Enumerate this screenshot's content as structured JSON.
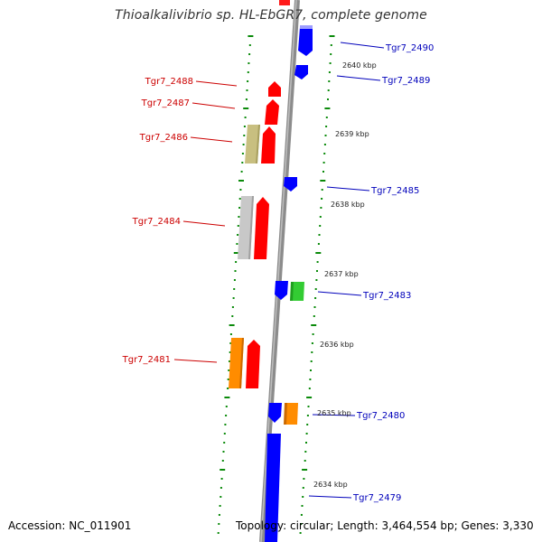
{
  "header": {
    "title": "Thioalkalivibrio sp. HL-EbGR7, complete genome"
  },
  "footer": {
    "accession": "Accession: NC_011901",
    "summary": "Topology: circular; Length: 3,464,554 bp; Genes: 3,330"
  },
  "colors": {
    "backbone": "#8c8c8c",
    "ticks": "#0a8a0a",
    "reverse_strand_label": "#cc0000",
    "forward_strand_label": "#0000bb"
  },
  "scale_labels": [
    "2640 kbp",
    "2639 kbp",
    "2638 kbp",
    "2637 kbp",
    "2636 kbp",
    "2635 kbp",
    "2634 kbp"
  ],
  "genes_left": [
    {
      "label": "Tgr7_2488",
      "color": "#ff0000"
    },
    {
      "label": "Tgr7_2487",
      "color": "#ff0000"
    },
    {
      "label": "Tgr7_2486",
      "color": "#ff0000"
    },
    {
      "label": "Tgr7_2484",
      "color": "#ff0000"
    },
    {
      "label": "Tgr7_2481",
      "color": "#ff0000"
    }
  ],
  "genes_right": [
    {
      "label": "Tgr7_2490",
      "color": "#0000ff"
    },
    {
      "label": "Tgr7_2489",
      "color": "#0000ff"
    },
    {
      "label": "Tgr7_2485",
      "color": "#0000ff"
    },
    {
      "label": "Tgr7_2483",
      "color": "#0000ff"
    },
    {
      "label": "Tgr7_2480",
      "color": "#0000ff"
    },
    {
      "label": "Tgr7_2479",
      "color": "#0000ff"
    }
  ]
}
